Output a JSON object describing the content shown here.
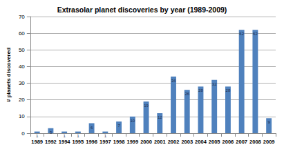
{
  "chart_data": {
    "type": "bar",
    "title": "Extrasolar planet discoveries by year (1989-2009)",
    "y_label": "# planets discovered",
    "categories": [
      "1989",
      "1992",
      "1994",
      "1995",
      "1996",
      "1997",
      "1998",
      "1999",
      "2000",
      "2001",
      "2002",
      "2003",
      "2004",
      "2005",
      "2006",
      "2007",
      "2008",
      "2009"
    ],
    "values": [
      1,
      3,
      1,
      1,
      6,
      1,
      7,
      10,
      19,
      12,
      34,
      26,
      28,
      32,
      28,
      62,
      62,
      9
    ],
    "color": "#4f81bd",
    "ylim": [
      0,
      70
    ],
    "yticks": [
      0,
      10,
      20,
      30,
      40,
      50,
      60,
      70
    ],
    "grid": true,
    "data_labels": true
  }
}
